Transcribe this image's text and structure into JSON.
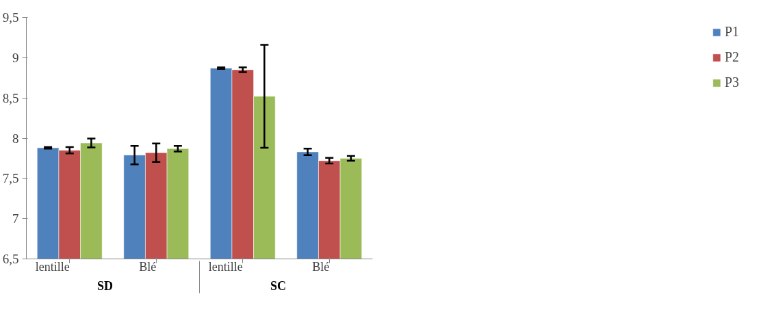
{
  "chart_data": {
    "type": "bar",
    "categories": [
      "lentille",
      "Blé",
      "lentille",
      "Blé"
    ],
    "annotations": [
      "SD",
      "SC"
    ],
    "series": [
      {
        "name": "P1",
        "color": "#4f81bd",
        "values": [
          7.88,
          7.79,
          8.87,
          7.83
        ],
        "errors": [
          0.01,
          0.115,
          0.01,
          0.04
        ]
      },
      {
        "name": "P2",
        "color": "#c0504d",
        "values": [
          7.85,
          7.82,
          8.85,
          7.72
        ],
        "errors": [
          0.04,
          0.115,
          0.03,
          0.035
        ]
      },
      {
        "name": "P3",
        "color": "#9bbb59",
        "values": [
          7.94,
          7.87,
          8.52,
          7.75
        ],
        "errors": [
          0.055,
          0.035,
          0.64,
          0.03
        ]
      }
    ],
    "ylim": [
      6.5,
      9.5
    ],
    "yticks": [
      {
        "value": 6.5,
        "label": "6,5"
      },
      7,
      {
        "value": 7.5,
        "label": "7,5"
      },
      8,
      {
        "value": 8.5,
        "label": "8,5"
      },
      9,
      {
        "value": 9.5,
        "label": "9,5"
      }
    ],
    "grid": false,
    "legend": "right"
  }
}
